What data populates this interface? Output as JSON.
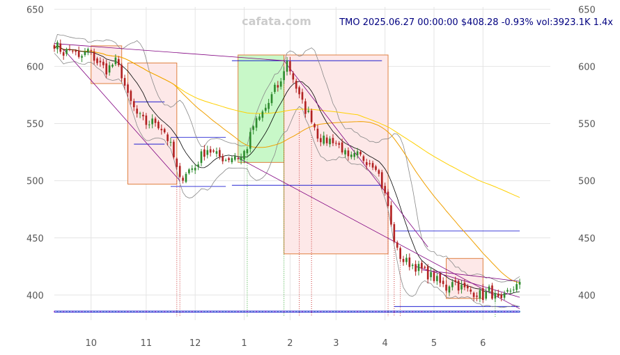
{
  "chart_data": {
    "type": "candlestick",
    "watermark": "cafata.com",
    "headline": "TMO 2025.06.27 00:00:00 $408.28 -0.93% vol:3923.1K 1.4x",
    "ylim": [
      378,
      652
    ],
    "xlim": [
      0,
      162
    ],
    "y_ticks": [
      400,
      450,
      500,
      550,
      600,
      650
    ],
    "x_ticks": [
      {
        "label": "10",
        "i": 12
      },
      {
        "label": "11",
        "i": 30
      },
      {
        "label": "12",
        "i": 46
      },
      {
        "label": "1",
        "i": 62
      },
      {
        "label": "2",
        "i": 77
      },
      {
        "label": "3",
        "i": 92
      },
      {
        "label": "4",
        "i": 108
      },
      {
        "label": "5",
        "i": 124
      },
      {
        "label": "6",
        "i": 140
      }
    ],
    "grid": true,
    "colors": {
      "up": "#2e8b2e",
      "down": "#b22222",
      "bb": "#888888",
      "ma_short": "#000000",
      "ma_mid": "#f0a000",
      "ma_long": "#ffd000",
      "trend": "#800080",
      "level": "#0000cc",
      "box_red_fill": "#fde8e8",
      "box_red_edge": "#e08040",
      "box_green_fill": "#c8f8c8",
      "box_green_edge": "#e08040"
    },
    "anchors": [
      [
        0,
        620
      ],
      [
        3,
        612
      ],
      [
        6,
        615
      ],
      [
        8,
        606
      ],
      [
        11,
        614
      ],
      [
        14,
        604
      ],
      [
        17,
        597
      ],
      [
        20,
        604
      ],
      [
        22,
        593
      ],
      [
        24,
        573
      ],
      [
        27,
        558
      ],
      [
        30,
        550
      ],
      [
        33,
        552
      ],
      [
        36,
        543
      ],
      [
        38,
        530
      ],
      [
        40,
        510
      ],
      [
        41,
        500
      ],
      [
        43,
        508
      ],
      [
        46,
        512
      ],
      [
        48,
        522
      ],
      [
        50,
        528
      ],
      [
        53,
        522
      ],
      [
        56,
        519
      ],
      [
        59,
        522
      ],
      [
        61,
        520
      ],
      [
        63,
        530
      ],
      [
        65,
        548
      ],
      [
        67,
        555
      ],
      [
        70,
        568
      ],
      [
        72,
        580
      ],
      [
        74,
        585
      ],
      [
        75,
        598
      ],
      [
        76,
        604
      ],
      [
        78,
        590
      ],
      [
        80,
        573
      ],
      [
        82,
        562
      ],
      [
        84,
        555
      ],
      [
        86,
        540
      ],
      [
        88,
        535
      ],
      [
        91,
        536
      ],
      [
        94,
        528
      ],
      [
        96,
        518
      ],
      [
        99,
        522
      ],
      [
        102,
        518
      ],
      [
        105,
        514
      ],
      [
        107,
        496
      ],
      [
        109,
        478
      ],
      [
        110,
        460
      ],
      [
        112,
        438
      ],
      [
        114,
        430
      ],
      [
        116,
        428
      ],
      [
        118,
        425
      ],
      [
        120,
        422
      ],
      [
        122,
        418
      ],
      [
        124,
        415
      ],
      [
        126,
        410
      ],
      [
        128,
        406
      ],
      [
        130,
        414
      ],
      [
        132,
        408
      ],
      [
        134,
        405
      ],
      [
        136,
        403
      ],
      [
        138,
        402
      ],
      [
        140,
        399
      ],
      [
        142,
        404
      ],
      [
        144,
        398
      ],
      [
        146,
        393
      ],
      [
        148,
        402
      ],
      [
        150,
        407
      ],
      [
        152,
        408
      ]
    ],
    "boxes": [
      {
        "i0": 12,
        "i1": 22,
        "y0": 585,
        "y1": 618,
        "kind": "red"
      },
      {
        "i0": 24,
        "i1": 40,
        "y0": 497,
        "y1": 603,
        "kind": "red"
      },
      {
        "i0": 60,
        "i1": 75,
        "y0": 516,
        "y1": 610,
        "kind": "green"
      },
      {
        "i0": 75,
        "i1": 109,
        "y0": 436,
        "y1": 610,
        "kind": "red"
      },
      {
        "i0": 128,
        "i1": 140,
        "y0": 397,
        "y1": 432,
        "kind": "red"
      }
    ],
    "levels": [
      {
        "i0": 0,
        "i1": 152,
        "y": 385
      },
      {
        "i0": 0,
        "i1": 152,
        "y": 386
      },
      {
        "i0": 26,
        "i1": 36,
        "y": 569
      },
      {
        "i0": 26,
        "i1": 36,
        "y": 532
      },
      {
        "i0": 38,
        "i1": 56,
        "y": 538
      },
      {
        "i0": 38,
        "i1": 56,
        "y": 495
      },
      {
        "i0": 58,
        "i1": 107,
        "y": 605
      },
      {
        "i0": 58,
        "i1": 107,
        "y": 496
      },
      {
        "i0": 111,
        "i1": 152,
        "y": 456
      },
      {
        "i0": 111,
        "i1": 152,
        "y": 390
      }
    ],
    "trendlines": [
      {
        "i0": 0,
        "y0": 620,
        "i1": 75,
        "y1": 605
      },
      {
        "i0": 3,
        "y0": 615,
        "i1": 41,
        "y1": 500
      },
      {
        "i0": 60,
        "y0": 520,
        "i1": 152,
        "y1": 388
      },
      {
        "i0": 75,
        "y0": 605,
        "i1": 122,
        "y1": 442
      },
      {
        "i0": 120,
        "y0": 422,
        "i1": 152,
        "y1": 412
      },
      {
        "i0": 118,
        "y0": 425,
        "i1": 152,
        "y1": 398
      }
    ],
    "markers": [
      {
        "i": 40,
        "y": 500,
        "c": "#cc3333"
      },
      {
        "i": 41,
        "y": 505,
        "c": "#cc3333"
      },
      {
        "i": 63,
        "y": 530,
        "c": "#33aa33"
      },
      {
        "i": 75,
        "y": 600,
        "c": "#33aa33"
      },
      {
        "i": 80,
        "y": 560,
        "c": "#cc3333"
      },
      {
        "i": 84,
        "y": 540,
        "c": "#cc3333"
      },
      {
        "i": 109,
        "y": 478,
        "c": "#cc3333"
      },
      {
        "i": 111,
        "y": 445,
        "c": "#cc3333"
      },
      {
        "i": 113,
        "y": 430,
        "c": "#cc3333"
      },
      {
        "i": 144,
        "y": 398,
        "c": "#33aa33"
      }
    ]
  }
}
